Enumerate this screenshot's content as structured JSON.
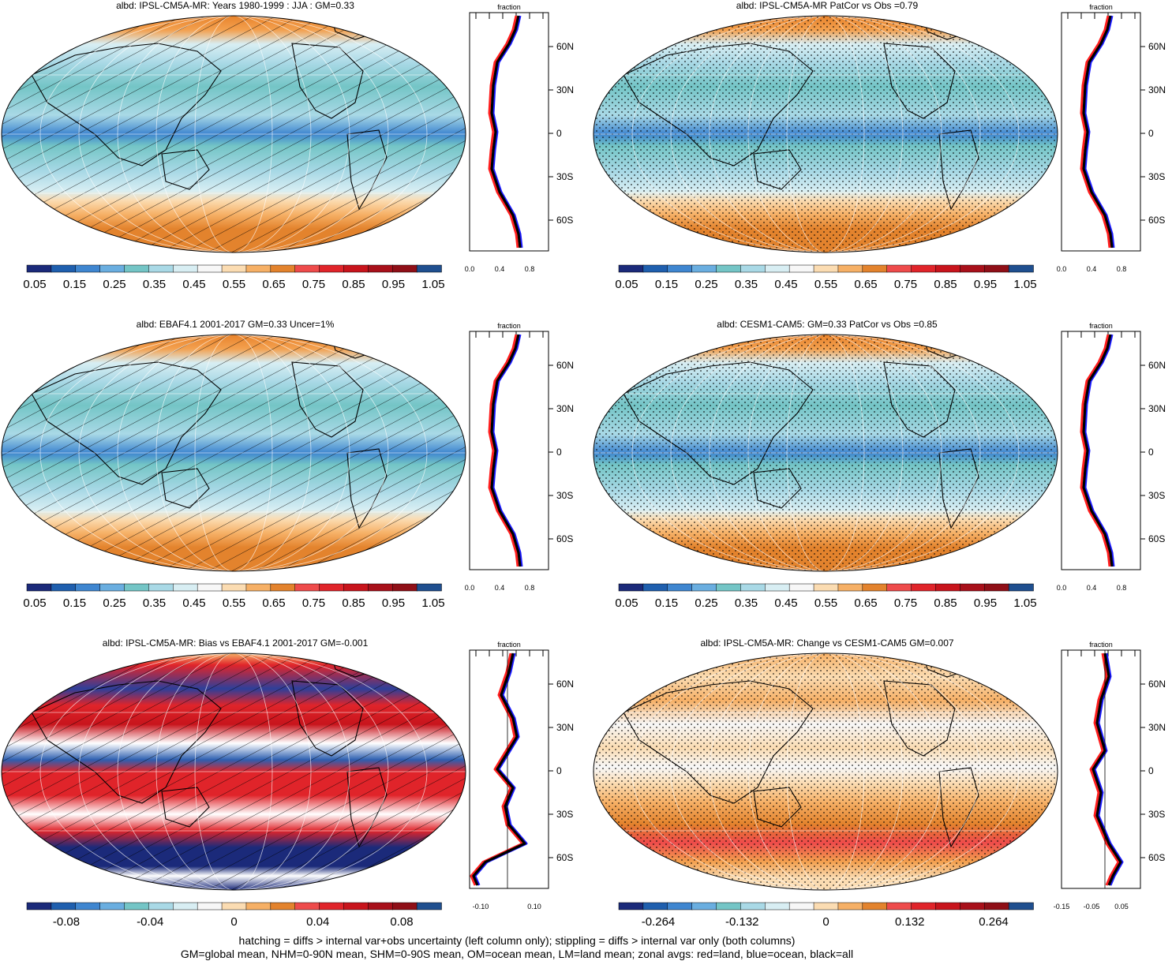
{
  "panels": [
    {
      "id": "p1",
      "title": "albd: IPSL-CM5A-MR: Years 1980-1999 : JJA : GM=0.33",
      "pattern": "hatch",
      "scheme": "seq",
      "colorbar": [
        "0.05",
        "0.15",
        "0.25",
        "0.35",
        "0.45",
        "0.55",
        "0.65",
        "0.75",
        "0.85",
        "0.95",
        "1.05"
      ],
      "zonal": {
        "title": "fraction",
        "xticks": [
          "0.0",
          "0.4",
          "0.8"
        ],
        "lats": [
          "60N",
          "30N",
          "0",
          "30S",
          "60S"
        ]
      }
    },
    {
      "id": "p2",
      "title": "albd: IPSL-CM5A-MR PatCor vs Obs =0.79",
      "pattern": "stipple",
      "scheme": "seq",
      "colorbar": [
        "0.05",
        "0.15",
        "0.25",
        "0.35",
        "0.45",
        "0.55",
        "0.65",
        "0.75",
        "0.85",
        "0.95",
        "1.05"
      ],
      "zonal": {
        "title": "fraction",
        "xticks": [
          "0.0",
          "0.4",
          "0.8"
        ],
        "lats": [
          "60N",
          "30N",
          "0",
          "30S",
          "60S"
        ]
      }
    },
    {
      "id": "p3",
      "title": "albd: EBAF4.1 2001-2017 GM=0.33 Uncer=1%",
      "pattern": "hatch",
      "scheme": "seq",
      "colorbar": [
        "0.05",
        "0.15",
        "0.25",
        "0.35",
        "0.45",
        "0.55",
        "0.65",
        "0.75",
        "0.85",
        "0.95",
        "1.05"
      ],
      "zonal": {
        "title": "fraction",
        "xticks": [
          "0.0",
          "0.4",
          "0.8"
        ],
        "lats": [
          "60N",
          "30N",
          "0",
          "30S",
          "60S"
        ]
      }
    },
    {
      "id": "p4",
      "title": "albd: CESM1-CAM5: GM=0.33 PatCor vs Obs =0.85",
      "pattern": "stipple",
      "scheme": "seq",
      "colorbar": [
        "0.05",
        "0.15",
        "0.25",
        "0.35",
        "0.45",
        "0.55",
        "0.65",
        "0.75",
        "0.85",
        "0.95",
        "1.05"
      ],
      "zonal": {
        "title": "fraction",
        "xticks": [
          "0.0",
          "0.4",
          "0.8"
        ],
        "lats": [
          "60N",
          "30N",
          "0",
          "30S",
          "60S"
        ]
      }
    },
    {
      "id": "p5",
      "title": "albd: IPSL-CM5A-MR: Bias vs EBAF4.1 2001-2017 GM=-0.001",
      "pattern": "hatch",
      "scheme": "bias",
      "colorbar": [
        "-0.08",
        "-0.04",
        "0",
        "0.04",
        "0.08"
      ],
      "zonal": {
        "title": "fraction",
        "xticks": [
          "-0.10",
          "0.10"
        ],
        "lats": [
          "60N",
          "30N",
          "0",
          "30S",
          "60S"
        ]
      }
    },
    {
      "id": "p6",
      "title": "albd: IPSL-CM5A-MR: Change vs CESM1-CAM5 GM=0.007",
      "pattern": "stipple",
      "scheme": "change",
      "colorbar": [
        "-0.264",
        "-0.132",
        "0",
        "0.132",
        "0.264"
      ],
      "zonal": {
        "title": "fraction",
        "xticks": [
          "-0.15",
          "-0.05",
          "0.05"
        ],
        "lats": [
          "60N",
          "30N",
          "0",
          "30S",
          "60S"
        ]
      }
    }
  ],
  "footer": {
    "line1": "hatching = diffs > internal var+obs uncertainty (left column only); stippling = diffs > internal var only (both columns)",
    "line2": "GM=global mean, NHM=0-90N mean, SHM=0-90S mean, OM=ocean mean, LM=land mean; zonal avgs: red=land, blue=ocean, black=all"
  },
  "colors": {
    "seq_palette": [
      "#1b2a7a",
      "#1f5fae",
      "#3f86d0",
      "#6aaee0",
      "#74c5c6",
      "#a9d9e6",
      "#d8eef3",
      "#f7f7f7",
      "#fbdcb2",
      "#f6b066",
      "#e3832d",
      "#ee4b4b",
      "#e0242a",
      "#c8141c",
      "#a8101a",
      "#8f0f17",
      "#1f4f8f"
    ],
    "land_line": "#ff1e1e",
    "ocean_line": "#1a1aff",
    "all_line": "#000000"
  }
}
